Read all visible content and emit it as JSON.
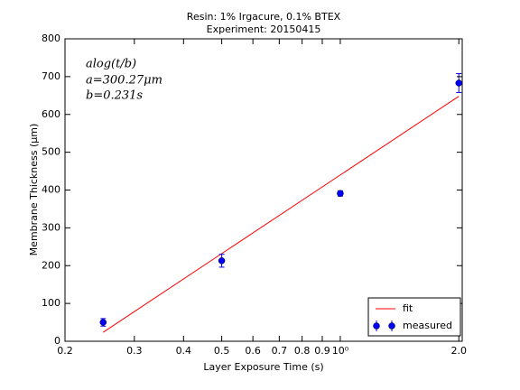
{
  "chart_data": {
    "type": "line",
    "title": [
      "Resin: 1% Irgacure, 0.1% BTEX",
      "Experiment: 20150415"
    ],
    "x_label": "Layer Exposure Time (s)",
    "y_label": "Membrane Thickness (μm)",
    "annotations": [
      "alog(t/b)",
      "a=300.27μm",
      "b=0.231s"
    ],
    "x_scale": "log",
    "xlim": [
      0.2,
      2.04
    ],
    "xticks": [
      0.2,
      0.3,
      0.4,
      0.5,
      0.6,
      0.7,
      0.8,
      0.9,
      {
        "value": 1,
        "label": "10⁰"
      },
      {
        "value": 2,
        "label": "2.0"
      }
    ],
    "ylim": [
      0,
      800
    ],
    "yticks": [
      0,
      100,
      200,
      300,
      400,
      500,
      600,
      700,
      800
    ],
    "legend": "lower right",
    "series": [
      {
        "name": "fit",
        "style": "line",
        "color": "#ff0000",
        "x": [
          0.25,
          2.0
        ],
        "values": [
          23.7,
          648
        ]
      },
      {
        "name": "measured",
        "style": "errorbar",
        "color": "#0000ff",
        "x": [
          0.25,
          0.5,
          1.0,
          2.0
        ],
        "values": [
          50,
          213,
          391,
          683
        ],
        "errors": [
          10,
          17,
          7,
          25
        ]
      }
    ]
  }
}
